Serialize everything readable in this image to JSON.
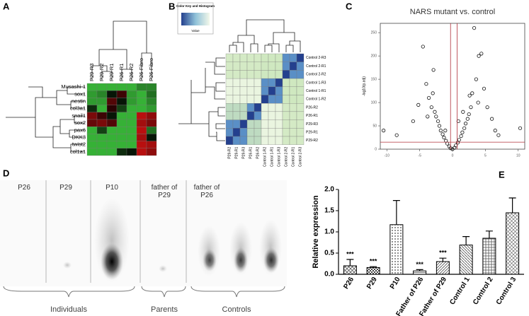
{
  "chart_data": [
    {
      "type": "heatmap",
      "panel": "A",
      "columns": [
        "P29-R3",
        "P29-R2",
        "P29-R1",
        "P26-R1",
        "P26-R2",
        "P26-Fibro",
        "P26-Fibro"
      ],
      "rows": [
        "Musashi-1",
        "sox1",
        "nestin",
        "col3a1",
        "snail1",
        "sox2",
        "pax6",
        "DKK3",
        "twist2",
        "col1a1"
      ],
      "values": [
        [
          -0.8,
          -0.8,
          -0.8,
          -0.8,
          -0.8,
          -0.6,
          -0.6
        ],
        [
          -0.7,
          -0.6,
          -0.1,
          0.3,
          -0.7,
          -0.8,
          -0.5
        ],
        [
          -0.7,
          -0.7,
          0.4,
          -0.1,
          -0.7,
          -0.8,
          -0.6
        ],
        [
          -0.2,
          -0.8,
          0.2,
          -0.3,
          -0.8,
          -0.8,
          -0.7
        ],
        [
          0.6,
          0.3,
          -0.1,
          -0.8,
          -0.8,
          0.9,
          0.7
        ],
        [
          0.5,
          0.6,
          0.4,
          -0.8,
          -0.8,
          0.8,
          0.6
        ],
        [
          -0.8,
          -0.3,
          -0.8,
          -0.8,
          -0.8,
          0.9,
          -0.5
        ],
        [
          -0.8,
          -0.8,
          -0.8,
          -0.8,
          -0.8,
          0.8,
          -0.1
        ],
        [
          -0.8,
          -0.8,
          -0.8,
          -0.8,
          -0.8,
          0.9,
          0.8
        ],
        [
          -0.8,
          -0.8,
          -0.8,
          -0.2,
          -0.1,
          0.9,
          0.7
        ]
      ]
    },
    {
      "type": "heatmap",
      "panel": "B",
      "color_key_title": "Color Key and Histogram",
      "color_key_label": "Value",
      "columns": [
        "P29-R2",
        "P29-R1",
        "P29-R3",
        "P26-R1",
        "P26-R2",
        "Control 1-R2",
        "Control 1-R1",
        "Control 1-R3",
        "Control 2-R2",
        "Control 2-R1",
        "Control 2-R3"
      ],
      "rows": [
        "Control 2-R3",
        "Control 2-R1",
        "Control 2-R2",
        "Control 1-R3",
        "Control 1-R1",
        "Control 1-R2",
        "P26-R2",
        "P26-R1",
        "P29-R3",
        "P29-R1",
        "P29-R2"
      ],
      "values": [
        [
          0.4,
          0.4,
          0.4,
          0.4,
          0.4,
          0.45,
          0.45,
          0.45,
          0.8,
          0.8,
          1
        ],
        [
          0.4,
          0.4,
          0.4,
          0.4,
          0.4,
          0.45,
          0.45,
          0.45,
          0.8,
          1,
          0.8
        ],
        [
          0.4,
          0.4,
          0.4,
          0.4,
          0.4,
          0.45,
          0.45,
          0.45,
          1,
          0.8,
          0.8
        ],
        [
          0.15,
          0.15,
          0.15,
          0.15,
          0.15,
          0.8,
          0.8,
          1,
          0.45,
          0.45,
          0.45
        ],
        [
          0.15,
          0.15,
          0.15,
          0.15,
          0.15,
          0.8,
          1,
          0.8,
          0.45,
          0.45,
          0.45
        ],
        [
          0.15,
          0.15,
          0.15,
          0.15,
          0.15,
          1,
          0.8,
          0.8,
          0.45,
          0.45,
          0.45
        ],
        [
          0.5,
          0.5,
          0.5,
          0.8,
          1,
          0.15,
          0.15,
          0.15,
          0.4,
          0.4,
          0.4
        ],
        [
          0.5,
          0.5,
          0.5,
          1,
          0.8,
          0.15,
          0.15,
          0.15,
          0.4,
          0.4,
          0.4
        ],
        [
          0.8,
          0.8,
          1,
          0.5,
          0.5,
          0.15,
          0.15,
          0.15,
          0.4,
          0.4,
          0.4
        ],
        [
          0.8,
          1,
          0.8,
          0.5,
          0.5,
          0.15,
          0.15,
          0.15,
          0.4,
          0.4,
          0.4
        ],
        [
          1,
          0.8,
          0.8,
          0.5,
          0.5,
          0.15,
          0.15,
          0.15,
          0.4,
          0.4,
          0.4
        ]
      ]
    },
    {
      "type": "scatter",
      "panel": "C",
      "title": "NARS mutant vs. control",
      "ylabel": "-log10(p.adj)",
      "x": [
        -8.5,
        -6,
        -5.2,
        -4.5,
        -4,
        -3.6,
        -3.2,
        -3,
        -2.7,
        -2.5,
        -2.2,
        -2,
        -1.8,
        -1.5,
        -1.3,
        -1,
        -0.8,
        -0.5,
        -0.3,
        0,
        0.3,
        0.5,
        0.8,
        1,
        1.3,
        1.5,
        1.8,
        2,
        2.3,
        2.5,
        2.8,
        3,
        3.3,
        3.6,
        4,
        4.4,
        4.8,
        5.3,
        6,
        6.5,
        7,
        -10.5,
        10.3,
        -3.8,
        3.9,
        -2.9,
        2.6,
        0.9,
        -1.1,
        1.6
      ],
      "y": [
        30,
        60,
        95,
        220,
        140,
        110,
        90,
        120,
        80,
        70,
        60,
        50,
        40,
        32,
        25,
        18,
        12,
        6,
        2,
        0,
        3,
        8,
        14,
        20,
        28,
        36,
        45,
        55,
        65,
        75,
        90,
        120,
        260,
        150,
        200,
        205,
        130,
        90,
        65,
        40,
        30,
        40,
        45,
        70,
        100,
        170,
        115,
        60,
        40,
        80
      ],
      "xlim": [
        -11,
        11
      ],
      "ylim": [
        0,
        270
      ],
      "xticks": [
        -10,
        -5,
        0,
        5,
        10
      ],
      "yticks": [
        0,
        50,
        100,
        150,
        200,
        250
      ],
      "vlines": [
        -0.3,
        0.7
      ],
      "hline": 15,
      "line_color": "#b0303a",
      "color": "#111111"
    },
    {
      "type": "blot",
      "panel": "D",
      "lanes": [
        "P26",
        "P29",
        "P10",
        "father of P29",
        "father of P26"
      ],
      "groups": [
        "Individuals",
        "Parents",
        "Controls"
      ]
    },
    {
      "type": "bar",
      "panel": "E",
      "ylabel": "Relative expression",
      "categories": [
        "P26",
        "P29",
        "P10",
        "Father of P26",
        "Father of P29",
        "Control 1",
        "Control 2",
        "Control 3"
      ],
      "values": [
        0.2,
        0.16,
        1.17,
        0.08,
        0.3,
        0.69,
        0.85,
        1.45
      ],
      "errors": [
        0.15,
        0.02,
        0.57,
        0.03,
        0.08,
        0.2,
        0.17,
        0.35
      ],
      "significance": [
        "***",
        "***",
        null,
        "***",
        "***",
        null,
        null,
        null
      ],
      "ylim": [
        0,
        2
      ],
      "yticks": [
        {
          "value": 0,
          "label": "0.0"
        },
        {
          "value": 0.5,
          "label": "0.5"
        },
        {
          "value": 1,
          "label": "1.0"
        },
        {
          "value": 1.5,
          "label": "1.5"
        },
        {
          "value": 2,
          "label": "2.0"
        }
      ]
    }
  ]
}
